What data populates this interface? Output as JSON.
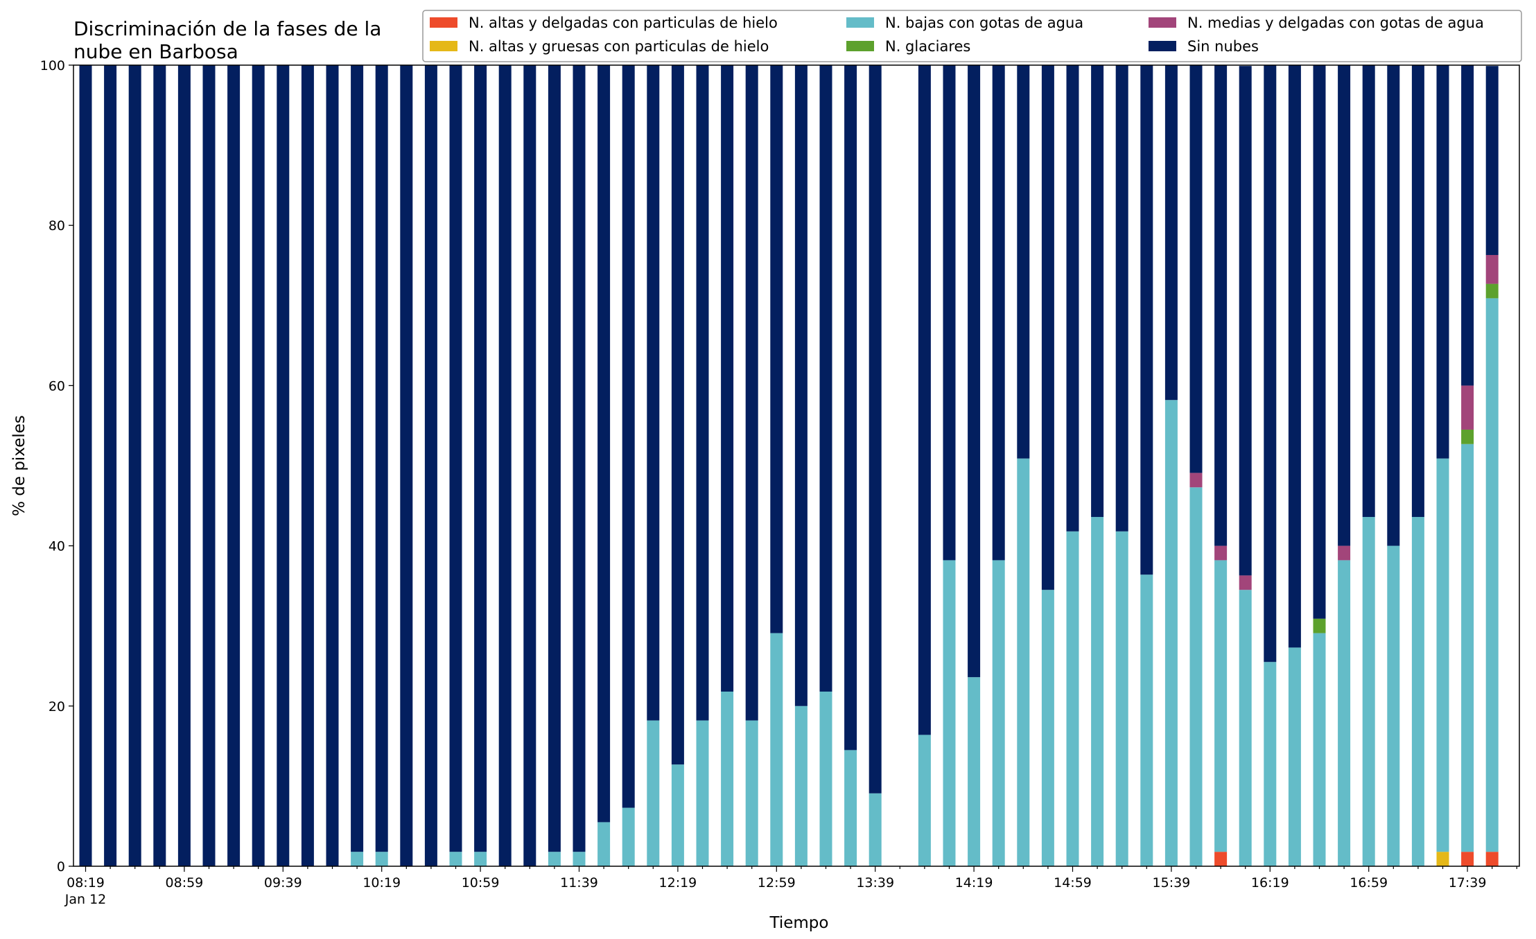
{
  "chart_data": {
    "type": "bar",
    "stacked": true,
    "title": [
      "Discriminación de la fases de la",
      "nube en Barbosa"
    ],
    "xlabel": "Tiempo",
    "ylabel": "% de pixeles",
    "ylim": [
      0,
      100
    ],
    "yticks": [
      0,
      20,
      40,
      60,
      80,
      100
    ],
    "grid": false,
    "legend_position": "top-right",
    "x_tick_labels": [
      "08:19",
      "08:59",
      "09:39",
      "10:19",
      "10:59",
      "11:39",
      "12:19",
      "12:59",
      "13:39",
      "14:19",
      "14:59",
      "15:39",
      "16:19",
      "16:59",
      "17:39"
    ],
    "x_sublabel": "Jan 12",
    "categories": [
      "08:19",
      "08:29",
      "08:39",
      "08:49",
      "08:59",
      "09:09",
      "09:19",
      "09:29",
      "09:39",
      "09:49",
      "09:59",
      "10:09",
      "10:19",
      "10:29",
      "10:39",
      "10:49",
      "10:59",
      "11:09",
      "11:19",
      "11:29",
      "11:39",
      "11:49",
      "11:59",
      "12:09",
      "12:19",
      "12:29",
      "12:39",
      "12:49",
      "12:59",
      "13:09",
      "13:19",
      "13:29",
      "13:39",
      "13:49",
      "13:59",
      "14:09",
      "14:19",
      "14:29",
      "14:39",
      "14:49",
      "14:59",
      "15:09",
      "15:19",
      "15:29",
      "15:39",
      "15:49",
      "15:59",
      "16:09",
      "16:19",
      "16:29",
      "16:39",
      "16:49",
      "16:59",
      "17:09",
      "17:19",
      "17:29",
      "17:39",
      "17:49"
    ],
    "series": [
      {
        "name": "N. altas y delgadas con particulas de hielo",
        "color": "#ee4b2b",
        "values": [
          0,
          0,
          0,
          0,
          0,
          0,
          0,
          0,
          0,
          0,
          0,
          0,
          0,
          0,
          0,
          0,
          0,
          0,
          0,
          0,
          0,
          0,
          0,
          0,
          0,
          0,
          0,
          0,
          0,
          0,
          0,
          0,
          0,
          null,
          0,
          0,
          0,
          0,
          0,
          0,
          0,
          0,
          0,
          0,
          0,
          0,
          1.8,
          0,
          0,
          0,
          0,
          0,
          0,
          0,
          0,
          0,
          1.8,
          1.8
        ]
      },
      {
        "name": "N. altas y gruesas con particulas de hielo",
        "color": "#e5b818",
        "values": [
          0,
          0,
          0,
          0,
          0,
          0,
          0,
          0,
          0,
          0,
          0,
          0,
          0,
          0,
          0,
          0,
          0,
          0,
          0,
          0,
          0,
          0,
          0,
          0,
          0,
          0,
          0,
          0,
          0,
          0,
          0,
          0,
          0,
          null,
          0,
          0,
          0,
          0,
          0,
          0,
          0,
          0,
          0,
          0,
          0,
          0,
          0,
          0,
          0,
          0,
          0,
          0,
          0,
          0,
          0,
          1.8,
          0,
          0
        ]
      },
      {
        "name": "N. bajas con gotas de agua",
        "color": "#64bcc8",
        "values": [
          0,
          0,
          0,
          0,
          0,
          0,
          0,
          0,
          0,
          0,
          0,
          1.8,
          1.8,
          0,
          0,
          1.8,
          1.8,
          0,
          0,
          1.8,
          1.8,
          5.5,
          7.3,
          18.2,
          12.7,
          18.2,
          21.8,
          18.2,
          29.1,
          20.0,
          21.8,
          14.5,
          9.1,
          null,
          16.4,
          38.2,
          23.6,
          38.2,
          50.9,
          34.5,
          41.8,
          43.6,
          41.8,
          36.4,
          58.2,
          47.3,
          36.4,
          34.5,
          25.5,
          27.3,
          29.1,
          38.2,
          43.6,
          40.0,
          43.6,
          49.1,
          50.9,
          69.1
        ]
      },
      {
        "name": "N. glaciares",
        "color": "#5da12d",
        "values": [
          0,
          0,
          0,
          0,
          0,
          0,
          0,
          0,
          0,
          0,
          0,
          0,
          0,
          0,
          0,
          0,
          0,
          0,
          0,
          0,
          0,
          0,
          0,
          0,
          0,
          0,
          0,
          0,
          0,
          0,
          0,
          0,
          0,
          null,
          0,
          0,
          0,
          0,
          0,
          0,
          0,
          0,
          0,
          0,
          0,
          0,
          0,
          0,
          0,
          0,
          1.8,
          0,
          0,
          0,
          0,
          0,
          1.8,
          1.8
        ]
      },
      {
        "name": "N. medias y delgadas con gotas de agua",
        "color": "#a2457a",
        "values": [
          0,
          0,
          0,
          0,
          0,
          0,
          0,
          0,
          0,
          0,
          0,
          0,
          0,
          0,
          0,
          0,
          0,
          0,
          0,
          0,
          0,
          0,
          0,
          0,
          0,
          0,
          0,
          0,
          0,
          0,
          0,
          0,
          0,
          null,
          0,
          0,
          0,
          0,
          0,
          0,
          0,
          0,
          0,
          0,
          0,
          1.8,
          1.8,
          1.8,
          0,
          0,
          0,
          1.8,
          0,
          0,
          0,
          0,
          5.5,
          3.6
        ]
      },
      {
        "name": "Sin nubes",
        "color": "#031f5f",
        "values": [
          100,
          100,
          100,
          100,
          100,
          100,
          100,
          100,
          100,
          100,
          100,
          98.2,
          98.2,
          100,
          100,
          98.2,
          98.2,
          100,
          100,
          98.2,
          98.2,
          94.5,
          92.7,
          81.8,
          87.3,
          81.8,
          78.2,
          81.8,
          70.9,
          80.0,
          78.2,
          85.5,
          90.9,
          null,
          83.6,
          61.8,
          76.4,
          61.8,
          49.1,
          65.5,
          58.2,
          56.4,
          58.2,
          63.6,
          41.8,
          50.9,
          60.0,
          63.6,
          74.5,
          72.7,
          69.1,
          60.0,
          56.4,
          60.0,
          56.4,
          49.1,
          40.0,
          23.6
        ]
      }
    ]
  }
}
